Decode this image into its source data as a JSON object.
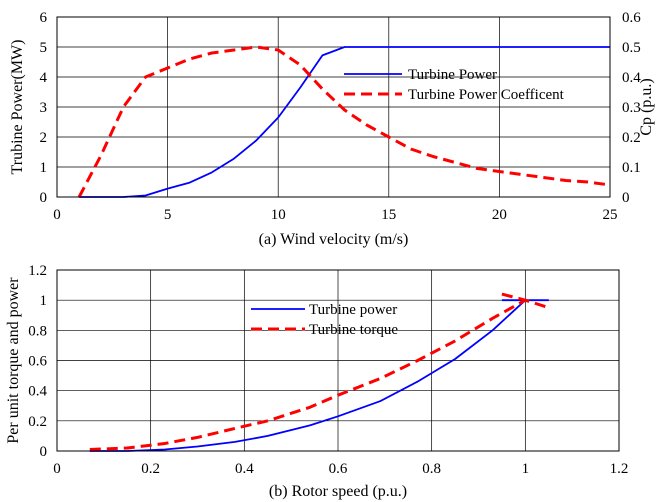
{
  "chart_data": [
    {
      "type": "line",
      "xlabel": "(a) Wind velocity (m/s)",
      "ylabel": "Trubine Power(MW)",
      "y2label": "Cp (p.u.)",
      "xlim": [
        0,
        25
      ],
      "ylim": [
        0,
        6
      ],
      "y2lim": [
        0,
        0.6
      ],
      "xticks": [
        0,
        5,
        10,
        15,
        20,
        25
      ],
      "yticks": [
        0,
        1,
        2,
        3,
        4,
        5,
        6
      ],
      "y2ticks": [
        0,
        0.1,
        0.2,
        0.3,
        0.4,
        0.5,
        0.6
      ],
      "grid": true,
      "legend_position": "center-right",
      "series": [
        {
          "name": "Turbine Power",
          "axis": "left",
          "color": "#0000ff",
          "style": "solid",
          "x": [
            1,
            2,
            3,
            4,
            5,
            6,
            7,
            8,
            9,
            10,
            11,
            12,
            13,
            14,
            15,
            16,
            17,
            18,
            19,
            20,
            21,
            22,
            23,
            24,
            25
          ],
          "y": [
            0,
            0,
            0,
            0.05,
            0.28,
            0.48,
            0.82,
            1.28,
            1.88,
            2.65,
            3.65,
            4.72,
            5,
            5,
            5,
            5,
            5,
            5,
            5,
            5,
            5,
            5,
            5,
            5,
            5
          ]
        },
        {
          "name": "Turbine Power Coefficent",
          "axis": "right",
          "color": "#ff0000",
          "style": "dashed",
          "x": [
            1,
            2,
            3,
            4,
            5,
            6,
            7,
            8,
            9,
            10,
            11,
            12,
            13,
            14,
            15,
            16,
            17,
            18,
            19,
            20,
            21,
            22,
            23,
            24,
            25
          ],
          "y": [
            0,
            0.14,
            0.3,
            0.4,
            0.43,
            0.46,
            0.48,
            0.49,
            0.5,
            0.49,
            0.44,
            0.36,
            0.29,
            0.24,
            0.2,
            0.16,
            0.135,
            0.115,
            0.095,
            0.085,
            0.075,
            0.065,
            0.055,
            0.05,
            0.04
          ]
        }
      ]
    },
    {
      "type": "line",
      "xlabel": "(b) Rotor speed (p.u.)",
      "ylabel": "Per unit torque and power",
      "xlim": [
        0,
        1.2
      ],
      "ylim": [
        0,
        1.2
      ],
      "xticks": [
        0,
        0.2,
        0.4,
        0.6,
        0.8,
        1,
        1.2
      ],
      "yticks": [
        0,
        0.2,
        0.4,
        0.6,
        0.8,
        1,
        1.2
      ],
      "grid": true,
      "legend_position": "top-center",
      "series": [
        {
          "name": "Turbine power",
          "color": "#0000ff",
          "style": "solid",
          "x": [
            0.07,
            0.15,
            0.23,
            0.3,
            0.38,
            0.45,
            0.54,
            0.6,
            0.69,
            0.77,
            0.85,
            0.93,
            1,
            1.05
          ],
          "y": [
            0,
            0,
            0.01,
            0.03,
            0.06,
            0.1,
            0.17,
            0.23,
            0.33,
            0.46,
            0.61,
            0.8,
            1,
            1
          ]
        },
        {
          "name": "Turbine torque",
          "color": "#ff0000",
          "style": "dashed",
          "x": [
            0.07,
            0.15,
            0.23,
            0.3,
            0.38,
            0.45,
            0.54,
            0.6,
            0.69,
            0.77,
            0.85,
            0.93,
            1,
            1.05
          ],
          "y": [
            0.01,
            0.02,
            0.05,
            0.09,
            0.15,
            0.2,
            0.29,
            0.37,
            0.48,
            0.6,
            0.73,
            0.88,
            1,
            0.95
          ]
        },
        {
          "name": "",
          "color": "#0000ff",
          "style": "solid",
          "x": [
            0.95,
            1.0
          ],
          "y": [
            1.0,
            1.0
          ]
        },
        {
          "name": "",
          "color": "#ff0000",
          "style": "dashed",
          "x": [
            0.95,
            1.0
          ],
          "y": [
            1.04,
            1.0
          ]
        }
      ]
    }
  ]
}
